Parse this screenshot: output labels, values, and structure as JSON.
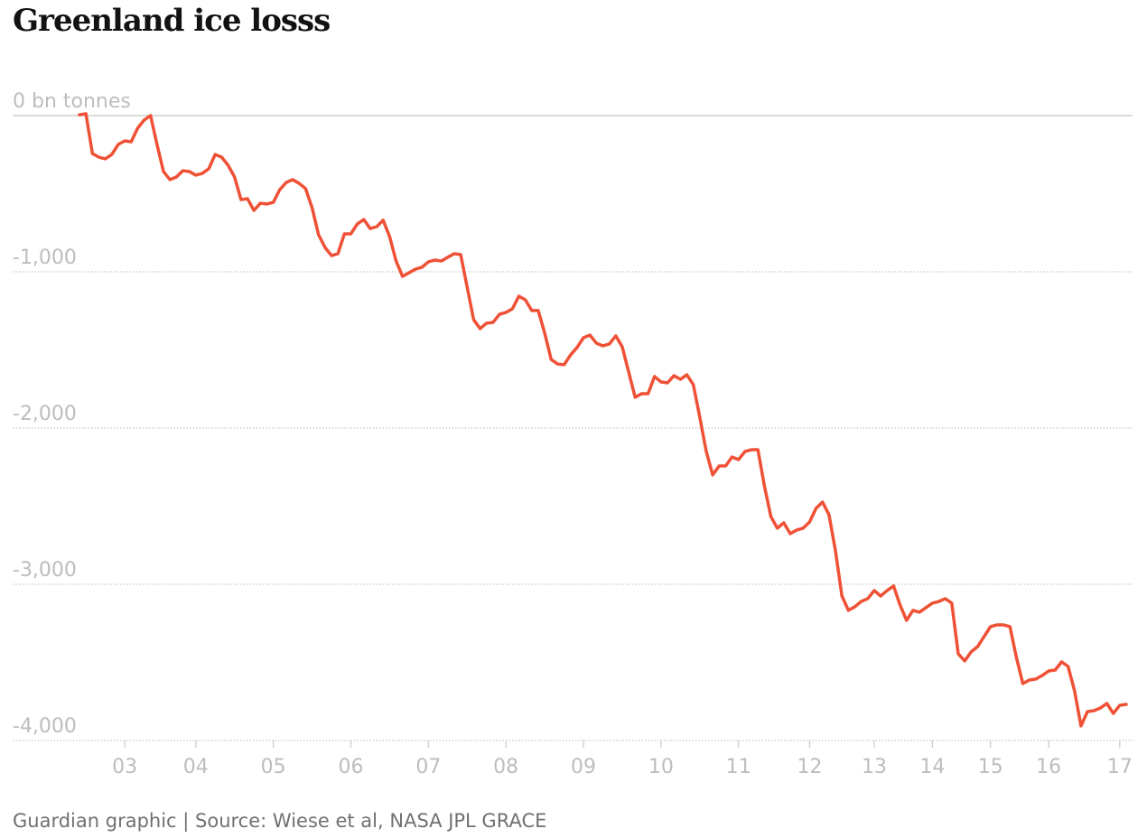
{
  "chart_data": {
    "type": "line",
    "title": "Greenland ice losss",
    "source": "Guardian graphic | Source: Wiese et al, NASA JPL GRACE",
    "color": "#ef5136",
    "grid": true,
    "ylim": [
      -4000,
      0
    ],
    "yticks": [
      {
        "value": 0,
        "label": "0 bn tonnes"
      },
      {
        "value": -1000,
        "label": "-1,000"
      },
      {
        "value": -2000,
        "label": "-2,000"
      },
      {
        "value": -3000,
        "label": "-3,000"
      },
      {
        "value": -4000,
        "label": "-4,000"
      }
    ],
    "categories": [
      null,
      null,
      null,
      null,
      null,
      null,
      null,
      "03",
      null,
      null,
      null,
      null,
      null,
      null,
      null,
      null,
      null,
      null,
      "04",
      null,
      null,
      null,
      null,
      null,
      null,
      null,
      null,
      null,
      null,
      null,
      "05",
      null,
      null,
      null,
      null,
      null,
      null,
      null,
      null,
      null,
      null,
      null,
      "06",
      null,
      null,
      null,
      null,
      null,
      null,
      null,
      null,
      null,
      null,
      null,
      "07",
      null,
      null,
      null,
      null,
      null,
      null,
      null,
      null,
      null,
      null,
      null,
      "08",
      null,
      null,
      null,
      null,
      null,
      null,
      null,
      null,
      null,
      null,
      null,
      "09",
      null,
      null,
      null,
      null,
      null,
      null,
      null,
      null,
      null,
      null,
      null,
      "10",
      null,
      null,
      null,
      null,
      null,
      null,
      null,
      null,
      null,
      null,
      null,
      "11",
      null,
      null,
      null,
      null,
      null,
      null,
      null,
      null,
      null,
      null,
      "12",
      null,
      null,
      null,
      null,
      null,
      null,
      null,
      null,
      null,
      "13",
      null,
      null,
      null,
      null,
      null,
      null,
      null,
      null,
      "14",
      null,
      null,
      null,
      null,
      null,
      null,
      null,
      null,
      "15",
      null,
      null,
      null,
      null,
      null,
      null,
      null,
      null,
      "16",
      null,
      null,
      null,
      null,
      null,
      null,
      null,
      null,
      null,
      null,
      "17",
      null
    ],
    "values": [
      5,
      12,
      -243,
      -266,
      -277,
      -249,
      -185,
      -162,
      -168,
      -81,
      -29,
      0,
      -185,
      -358,
      -410,
      -393,
      -353,
      -358,
      -381,
      -370,
      -341,
      -249,
      -266,
      -318,
      -393,
      -538,
      -532,
      -607,
      -561,
      -566,
      -555,
      -474,
      -428,
      -410,
      -434,
      -468,
      -590,
      -763,
      -844,
      -896,
      -884,
      -757,
      -757,
      -694,
      -665,
      -723,
      -711,
      -670,
      -775,
      -931,
      -1029,
      -1006,
      -983,
      -971,
      -936,
      -925,
      -931,
      -907,
      -884,
      -890,
      -1098,
      -1306,
      -1364,
      -1329,
      -1324,
      -1272,
      -1260,
      -1237,
      -1156,
      -1179,
      -1248,
      -1248,
      -1393,
      -1561,
      -1590,
      -1595,
      -1532,
      -1485,
      -1422,
      -1405,
      -1457,
      -1474,
      -1462,
      -1410,
      -1480,
      -1642,
      -1803,
      -1780,
      -1780,
      -1670,
      -1705,
      -1711,
      -1665,
      -1688,
      -1659,
      -1722,
      -1930,
      -2150,
      -2300,
      -2243,
      -2243,
      -2185,
      -2202,
      -2150,
      -2139,
      -2139,
      -2370,
      -2566,
      -2641,
      -2607,
      -2676,
      -2653,
      -2641,
      -2601,
      -2514,
      -2474,
      -2555,
      -2786,
      -3075,
      -3167,
      -3144,
      -3110,
      -3092,
      -3040,
      -3075,
      -3040,
      -3011,
      -3133,
      -3231,
      -3167,
      -3179,
      -3150,
      -3121,
      -3110,
      -3092,
      -3121,
      -3445,
      -3491,
      -3433,
      -3399,
      -3335,
      -3271,
      -3260,
      -3260,
      -3271,
      -3468,
      -3636,
      -3613,
      -3607,
      -3584,
      -3555,
      -3549,
      -3497,
      -3526,
      -3682,
      -3907,
      -3815,
      -3809,
      -3792,
      -3763,
      -3827,
      -3775,
      -3769
    ]
  }
}
